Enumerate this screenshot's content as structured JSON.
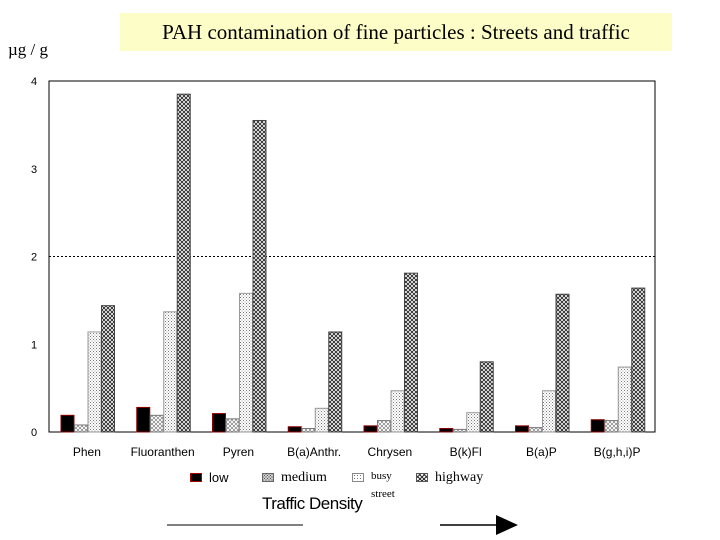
{
  "chart_data": {
    "type": "bar",
    "title": "PAH contamination of fine particles : Streets and traffic",
    "ylabel": "µg / g",
    "xlabel": "Traffic Density",
    "ylim": [
      0,
      4
    ],
    "yticks": [
      0,
      1,
      2,
      3,
      4
    ],
    "reference_line": 2,
    "categories": [
      "Phen",
      "Fluoranthen",
      "Pyren",
      "B(a)Anthr.",
      "Chrysen",
      "B(k)Fl",
      "B(a)P",
      "B(g,h,i)P"
    ],
    "series": [
      {
        "name": "low",
        "values": [
          0.19,
          0.28,
          0.21,
          0.06,
          0.07,
          0.04,
          0.07,
          0.14
        ]
      },
      {
        "name": "medium",
        "values": [
          0.08,
          0.19,
          0.15,
          0.04,
          0.13,
          0.03,
          0.05,
          0.13
        ]
      },
      {
        "name": "busy street",
        "values": [
          1.14,
          1.37,
          1.58,
          0.27,
          0.47,
          0.22,
          0.47,
          0.74
        ]
      },
      {
        "name": "highway",
        "values": [
          1.44,
          3.85,
          3.55,
          1.14,
          1.81,
          0.8,
          1.57,
          1.64
        ]
      }
    ],
    "legend_position": "bottom",
    "grid": false,
    "colors": {
      "low": "#000000",
      "low_border": "#8b0000"
    }
  },
  "legend": {
    "low": "low",
    "medium": "medium",
    "busy_line1": "busy",
    "busy_line2": "street",
    "highway": "highway"
  }
}
